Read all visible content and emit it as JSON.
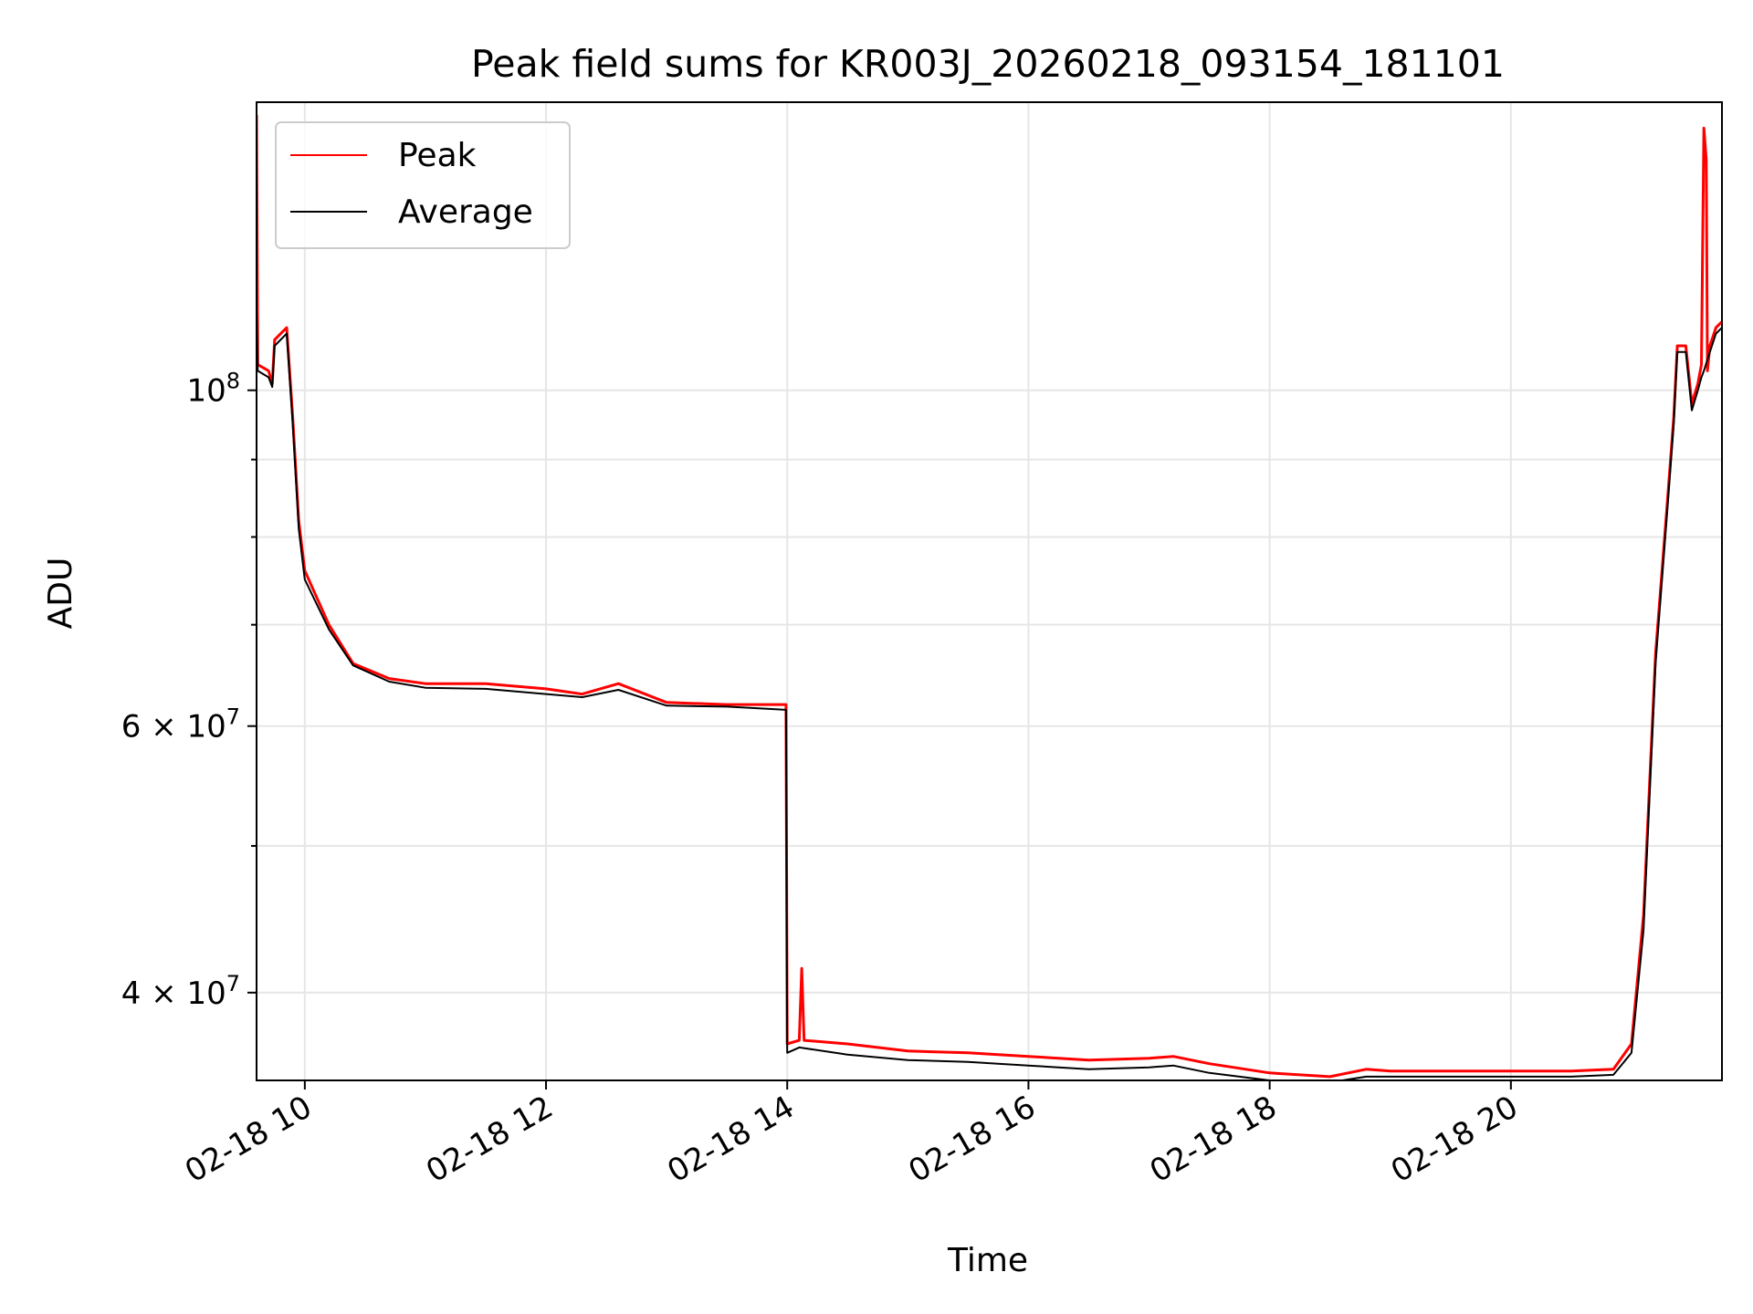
{
  "chart_data": {
    "type": "line",
    "title": "Peak field sums for KR003J_20260218_093154_181101",
    "xlabel": "Time",
    "ylabel": "ADU",
    "yscale": "log",
    "ylim": [
      35000000,
      155000000
    ],
    "xlim_hours": [
      9.6,
      21.75
    ],
    "grid": true,
    "legend_position": "top-left",
    "x_ticks": [
      {
        "hour": 10,
        "label": "02-18 10"
      },
      {
        "hour": 12,
        "label": "02-18 12"
      },
      {
        "hour": 14,
        "label": "02-18 14"
      },
      {
        "hour": 16,
        "label": "02-18 16"
      },
      {
        "hour": 18,
        "label": "02-18 18"
      },
      {
        "hour": 20,
        "label": "02-18 20"
      }
    ],
    "y_ticks": [
      {
        "value": 100000000,
        "base": "10",
        "exp": "8"
      },
      {
        "value": 60000000,
        "base": "6 × 10",
        "exp": "7"
      },
      {
        "value": 40000000,
        "base": "4 × 10",
        "exp": "7"
      }
    ],
    "y_minor_ticks": [
      50000000,
      70000000,
      80000000,
      90000000
    ],
    "series": [
      {
        "name": "Peak",
        "color": "#ff0000",
        "points": [
          [
            9.6,
            152000000
          ],
          [
            9.61,
            104000000
          ],
          [
            9.7,
            103000000
          ],
          [
            9.73,
            101000000
          ],
          [
            9.75,
            108000000
          ],
          [
            9.85,
            110000000
          ],
          [
            9.9,
            96000000
          ],
          [
            9.95,
            82000000
          ],
          [
            10.0,
            76000000
          ],
          [
            10.2,
            70000000
          ],
          [
            10.4,
            66000000
          ],
          [
            10.7,
            64500000
          ],
          [
            11.0,
            64000000
          ],
          [
            11.5,
            64000000
          ],
          [
            12.0,
            63500000
          ],
          [
            12.3,
            63000000
          ],
          [
            12.6,
            64000000
          ],
          [
            13.0,
            62200000
          ],
          [
            13.5,
            62000000
          ],
          [
            13.99,
            62000000
          ],
          [
            14.0,
            37000000
          ],
          [
            14.1,
            37200000
          ],
          [
            14.12,
            41500000
          ],
          [
            14.14,
            37200000
          ],
          [
            14.5,
            37000000
          ],
          [
            15.0,
            36600000
          ],
          [
            15.5,
            36500000
          ],
          [
            16.0,
            36300000
          ],
          [
            16.5,
            36100000
          ],
          [
            17.0,
            36200000
          ],
          [
            17.2,
            36300000
          ],
          [
            17.5,
            35900000
          ],
          [
            18.0,
            35400000
          ],
          [
            18.5,
            35200000
          ],
          [
            18.8,
            35600000
          ],
          [
            19.0,
            35500000
          ],
          [
            19.5,
            35500000
          ],
          [
            20.0,
            35500000
          ],
          [
            20.5,
            35500000
          ],
          [
            20.85,
            35600000
          ],
          [
            21.0,
            37000000
          ],
          [
            21.1,
            45000000
          ],
          [
            21.2,
            67000000
          ],
          [
            21.3,
            85000000
          ],
          [
            21.35,
            96000000
          ],
          [
            21.38,
            107000000
          ],
          [
            21.45,
            107000000
          ],
          [
            21.5,
            98000000
          ],
          [
            21.55,
            101000000
          ],
          [
            21.58,
            104000000
          ],
          [
            21.6,
            149000000
          ],
          [
            21.62,
            142000000
          ],
          [
            21.63,
            103000000
          ],
          [
            21.65,
            107000000
          ],
          [
            21.7,
            110000000
          ],
          [
            21.75,
            111000000
          ]
        ]
      },
      {
        "name": "Average",
        "color": "#000000",
        "points": [
          [
            9.6,
            113000000
          ],
          [
            9.61,
            103000000
          ],
          [
            9.7,
            102000000
          ],
          [
            9.73,
            100500000
          ],
          [
            9.75,
            107000000
          ],
          [
            9.85,
            109000000
          ],
          [
            9.9,
            95000000
          ],
          [
            9.95,
            81000000
          ],
          [
            10.0,
            75000000
          ],
          [
            10.2,
            69500000
          ],
          [
            10.4,
            65800000
          ],
          [
            10.7,
            64200000
          ],
          [
            11.0,
            63600000
          ],
          [
            11.5,
            63500000
          ],
          [
            12.0,
            63000000
          ],
          [
            12.3,
            62700000
          ],
          [
            12.6,
            63400000
          ],
          [
            13.0,
            61900000
          ],
          [
            13.5,
            61800000
          ],
          [
            13.99,
            61500000
          ],
          [
            14.0,
            36500000
          ],
          [
            14.1,
            36800000
          ],
          [
            14.5,
            36400000
          ],
          [
            15.0,
            36100000
          ],
          [
            15.5,
            36000000
          ],
          [
            16.0,
            35800000
          ],
          [
            16.5,
            35600000
          ],
          [
            17.0,
            35700000
          ],
          [
            17.2,
            35800000
          ],
          [
            17.5,
            35400000
          ],
          [
            18.0,
            35000000
          ],
          [
            18.5,
            34900000
          ],
          [
            18.8,
            35200000
          ],
          [
            19.0,
            35200000
          ],
          [
            19.5,
            35200000
          ],
          [
            20.0,
            35200000
          ],
          [
            20.5,
            35200000
          ],
          [
            20.85,
            35300000
          ],
          [
            21.0,
            36500000
          ],
          [
            21.1,
            44000000
          ],
          [
            21.2,
            66000000
          ],
          [
            21.3,
            84000000
          ],
          [
            21.35,
            95000000
          ],
          [
            21.38,
            106000000
          ],
          [
            21.45,
            106000000
          ],
          [
            21.5,
            97000000
          ],
          [
            21.55,
            100000000
          ],
          [
            21.58,
            102000000
          ],
          [
            21.6,
            103000000
          ],
          [
            21.65,
            106000000
          ],
          [
            21.7,
            109000000
          ],
          [
            21.75,
            110000000
          ]
        ]
      }
    ]
  }
}
